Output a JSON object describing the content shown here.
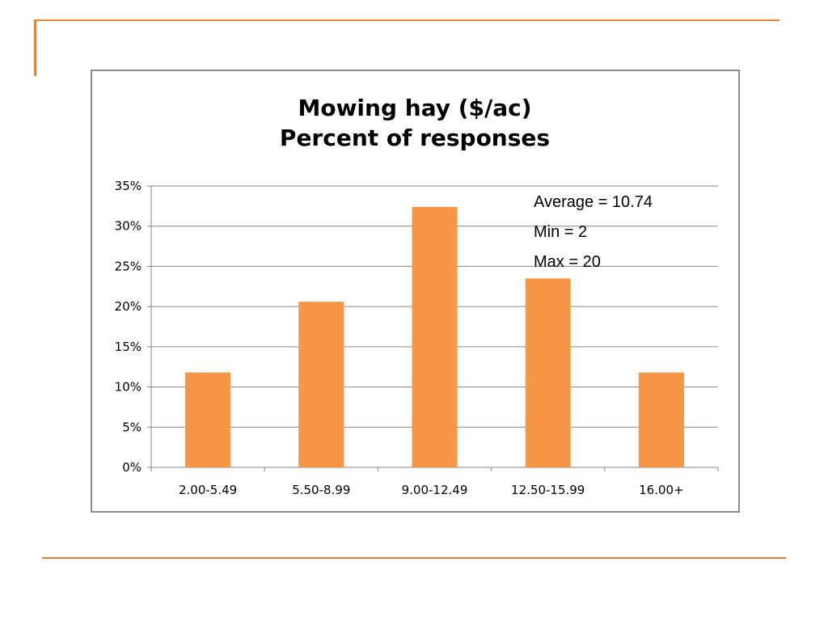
{
  "colors": {
    "accent": "#f07f2a",
    "bar": "#f79646",
    "frame_border": "#8c8c8c",
    "gridline": "#868686"
  },
  "chart_data": {
    "type": "bar",
    "title": [
      "Mowing hay ($/ac)",
      "Percent of responses"
    ],
    "xlabel": "",
    "ylabel": "",
    "categories": [
      "2.00-5.49",
      "5.50-8.99",
      "9.00-12.49",
      "12.50-15.99",
      "16.00+"
    ],
    "values": [
      11.8,
      20.6,
      32.4,
      23.5,
      11.8
    ],
    "value_unit": "%",
    "ylim": [
      0,
      35
    ],
    "y_ticks": [
      "0%",
      "5%",
      "10%",
      "15%",
      "20%",
      "25%",
      "30%",
      "35%"
    ],
    "y_tick_values": [
      0,
      5,
      10,
      15,
      20,
      25,
      30,
      35
    ],
    "grid": true,
    "legend": "none",
    "annotations": [
      "Average = 10.74",
      "Min = 2",
      "Max = 20"
    ]
  }
}
